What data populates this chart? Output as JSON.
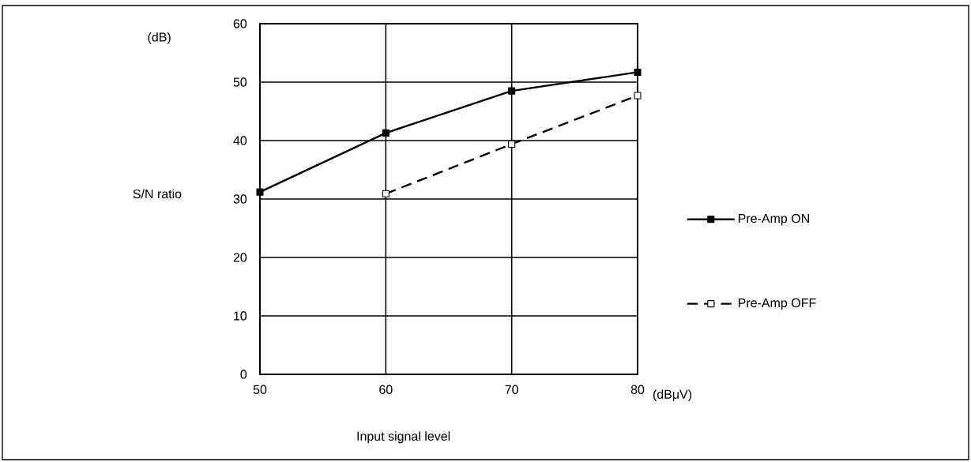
{
  "chart_data": {
    "type": "line",
    "xlabel": "Input signal level",
    "ylabel": "S/N ratio",
    "annotations": [
      "(dB)",
      "(dBμV)"
    ],
    "x": [
      50,
      60,
      70,
      80
    ],
    "series": [
      {
        "name": "Pre-Amp ON",
        "color": "#000000",
        "values": [
          31.2,
          41.3,
          48.5,
          51.7
        ],
        "line_style": "solid",
        "marker": "square"
      },
      {
        "name": "Pre-Amp OFF",
        "color": "#000000",
        "values": [
          null,
          30.9,
          39.4,
          47.7
        ],
        "line_style": "dashed",
        "marker": "square"
      }
    ],
    "xlim": [
      50,
      80
    ],
    "ylim": [
      0,
      60
    ],
    "xticks": [
      50,
      60,
      70,
      80
    ],
    "yticks": [
      0,
      10,
      20,
      30,
      40,
      50,
      60
    ],
    "grid": true,
    "legend": "right"
  }
}
